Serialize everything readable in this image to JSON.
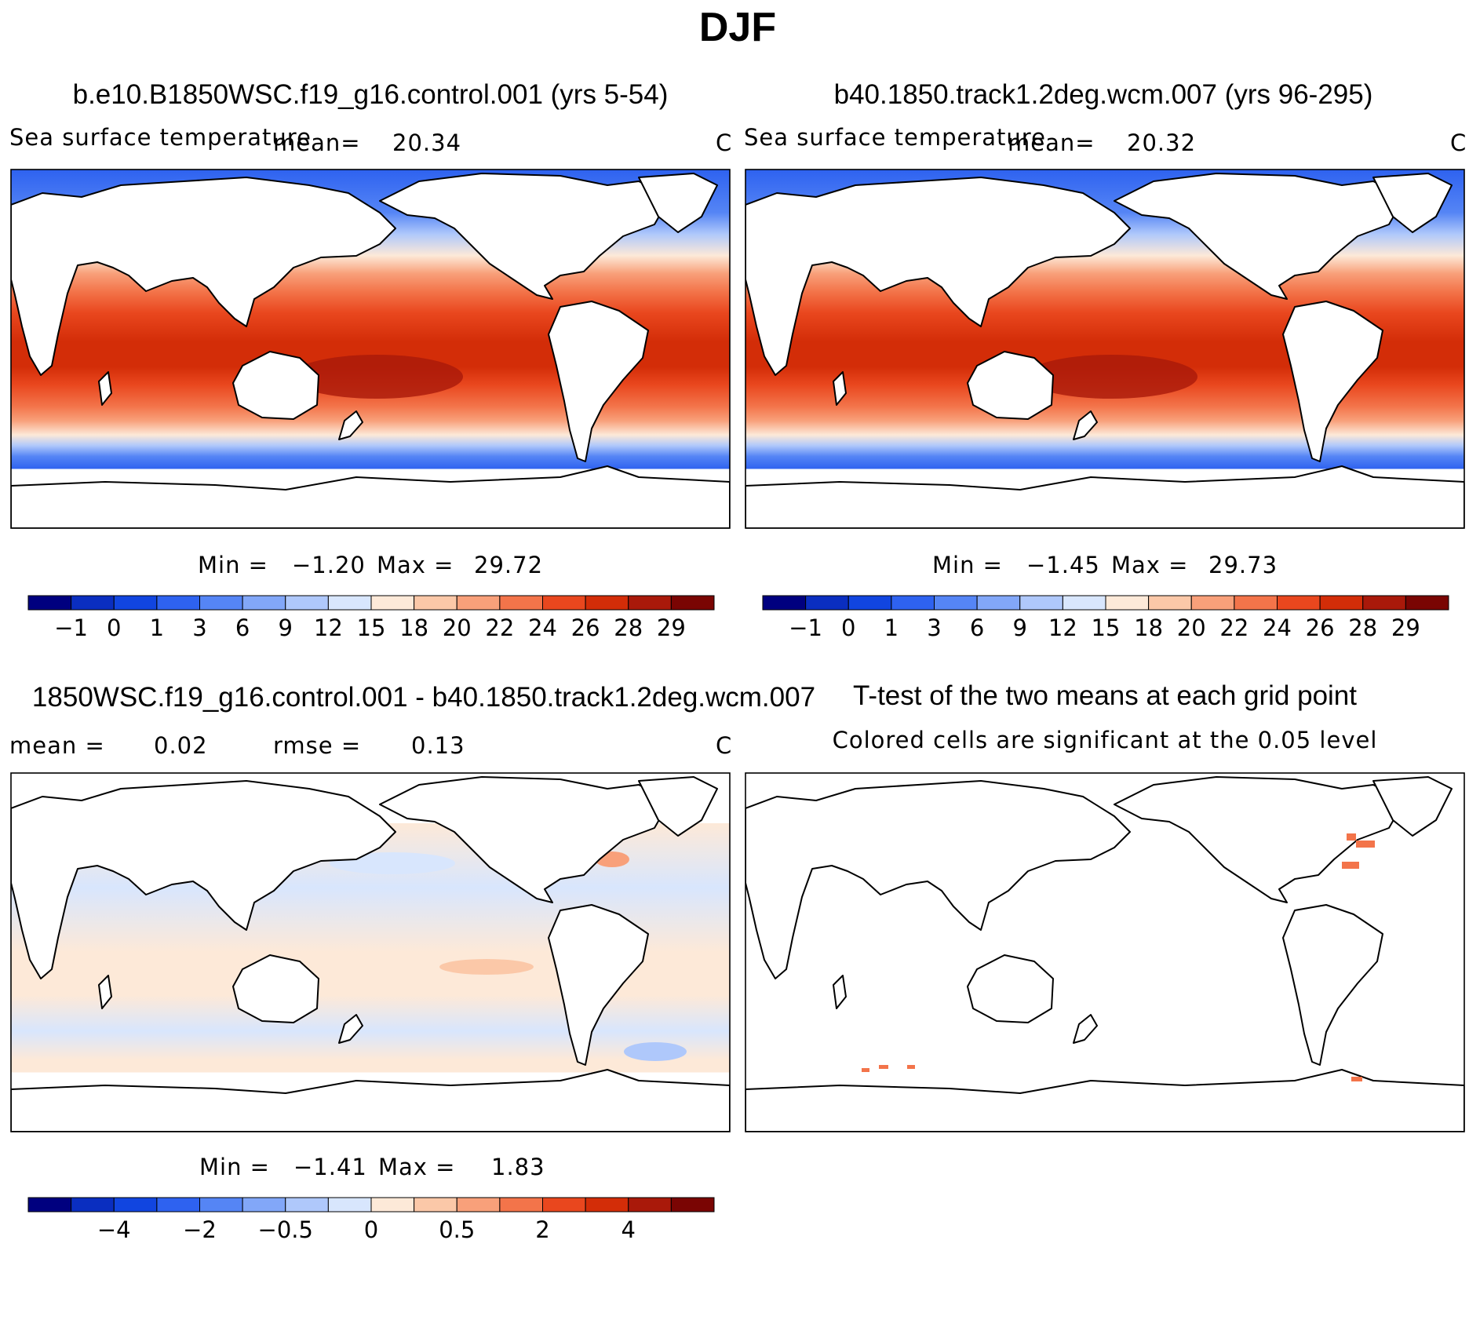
{
  "figure_title": "DJF",
  "chart_data": [
    {
      "type": "heatmap",
      "title": "b.e10.B1850WSC.f19_g16.control.001 (yrs 5-54)",
      "variable": "Sea surface temperature",
      "units": "C",
      "mean_label": "mean=",
      "mean": "20.34",
      "min_label": "Min =",
      "min": "−1.20",
      "max_label": "Max =",
      "max": "29.72",
      "colorbar_ticks": [
        "−1",
        "0",
        "1",
        "3",
        "6",
        "9",
        "12",
        "15",
        "18",
        "20",
        "22",
        "24",
        "26",
        "28",
        "29"
      ],
      "colors": [
        "#00007f",
        "#0a2ec0",
        "#1145e0",
        "#2e62f0",
        "#5585f5",
        "#82a7f8",
        "#afc8fb",
        "#d8e6fd",
        "#fde9d8",
        "#fbc8a8",
        "#f8a07a",
        "#f3744a",
        "#e9471e",
        "#d32d08",
        "#a9190a",
        "#7a0503"
      ]
    },
    {
      "type": "heatmap",
      "title": "b40.1850.track1.2deg.wcm.007 (yrs 96-295)",
      "variable": "Sea surface temperature",
      "units": "C",
      "mean_label": "mean=",
      "mean": "20.32",
      "min_label": "Min =",
      "min": "−1.45",
      "max_label": "Max =",
      "max": "29.73",
      "colorbar_ticks": [
        "−1",
        "0",
        "1",
        "3",
        "6",
        "9",
        "12",
        "15",
        "18",
        "20",
        "22",
        "24",
        "26",
        "28",
        "29"
      ],
      "colors": [
        "#00007f",
        "#0a2ec0",
        "#1145e0",
        "#2e62f0",
        "#5585f5",
        "#82a7f8",
        "#afc8fb",
        "#d8e6fd",
        "#fde9d8",
        "#fbc8a8",
        "#f8a07a",
        "#f3744a",
        "#e9471e",
        "#d32d08",
        "#a9190a",
        "#7a0503"
      ]
    },
    {
      "type": "heatmap",
      "title": "1850WSC.f19_g16.control.001 - b40.1850.track1.2deg.wcm.007",
      "units": "C",
      "mean_label": "mean =",
      "mean": "0.02",
      "rmse_label": "rmse =",
      "rmse": "0.13",
      "min_label": "Min =",
      "min": "−1.41",
      "max_label": "Max =",
      "max": "1.83",
      "colorbar_ticks": [
        "",
        "−4",
        "",
        "−2",
        "",
        "−0.5",
        "",
        "0",
        "",
        "0.5",
        "",
        "2",
        "",
        "4",
        ""
      ],
      "colors": [
        "#00007f",
        "#0a2ec0",
        "#1145e0",
        "#2e62f0",
        "#5585f5",
        "#82a7f8",
        "#afc8fb",
        "#d8e6fd",
        "#fde9d8",
        "#fbc8a8",
        "#f8a07a",
        "#f3744a",
        "#e9471e",
        "#d32d08",
        "#a9190a",
        "#7a0503"
      ]
    },
    {
      "type": "heatmap",
      "title": "T-test of the two means at each grid point",
      "subtitle": "Colored cells are significant at the 0.05 level"
    }
  ]
}
